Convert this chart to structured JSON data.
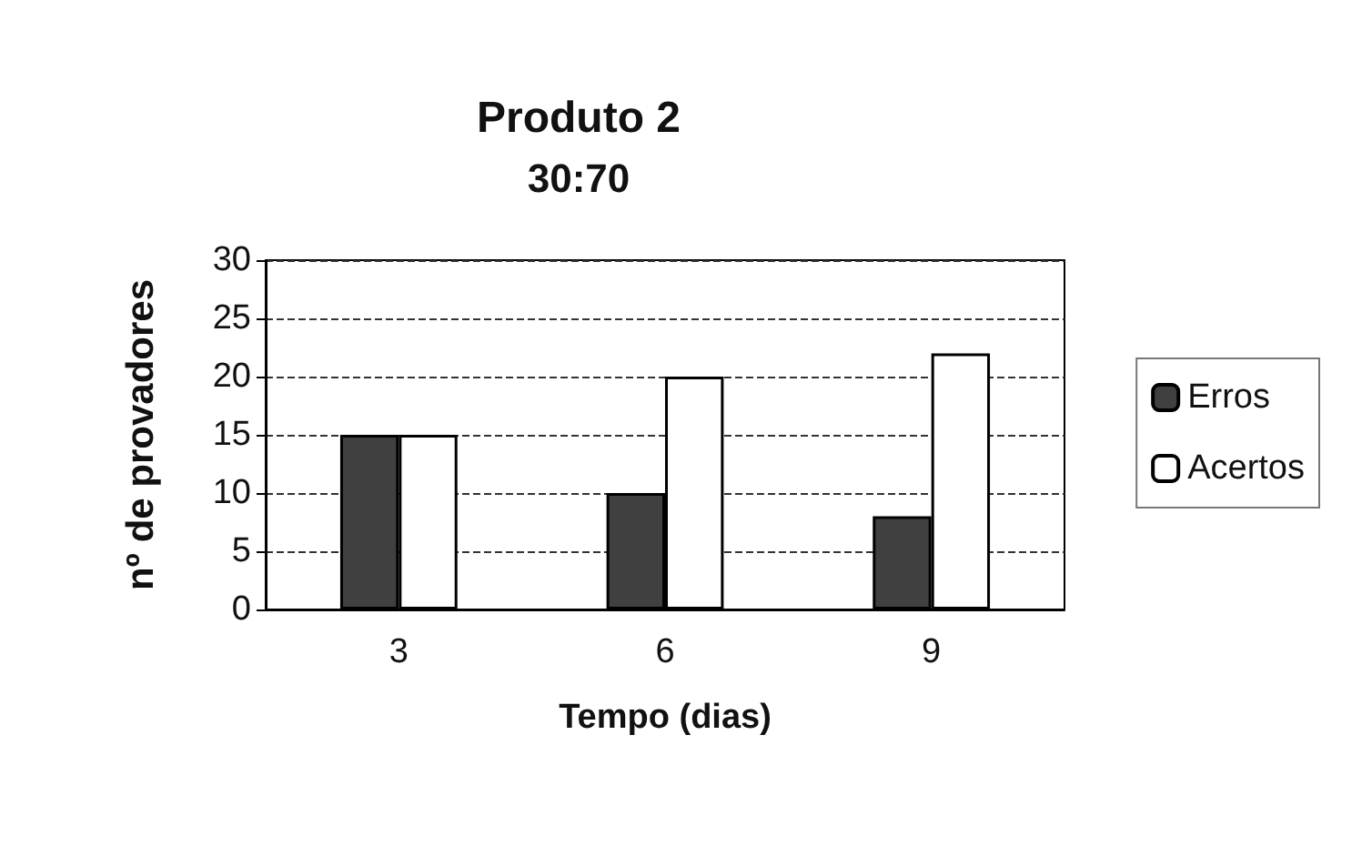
{
  "chart_data": {
    "type": "bar",
    "title": "Produto 2",
    "subtitle": "30:70",
    "xlabel": "Tempo (dias)",
    "ylabel": "nº de provadores",
    "categories": [
      "3",
      "6",
      "9"
    ],
    "series": [
      {
        "name": "Erros",
        "color": "#404040",
        "values": [
          15,
          10,
          8
        ]
      },
      {
        "name": "Acertos",
        "color": "#ffffff",
        "values": [
          15,
          20,
          22
        ]
      }
    ],
    "ylim": [
      0,
      30
    ],
    "yticks": [
      0,
      5,
      10,
      15,
      20,
      25,
      30
    ],
    "grid": "y",
    "legend": "right"
  }
}
